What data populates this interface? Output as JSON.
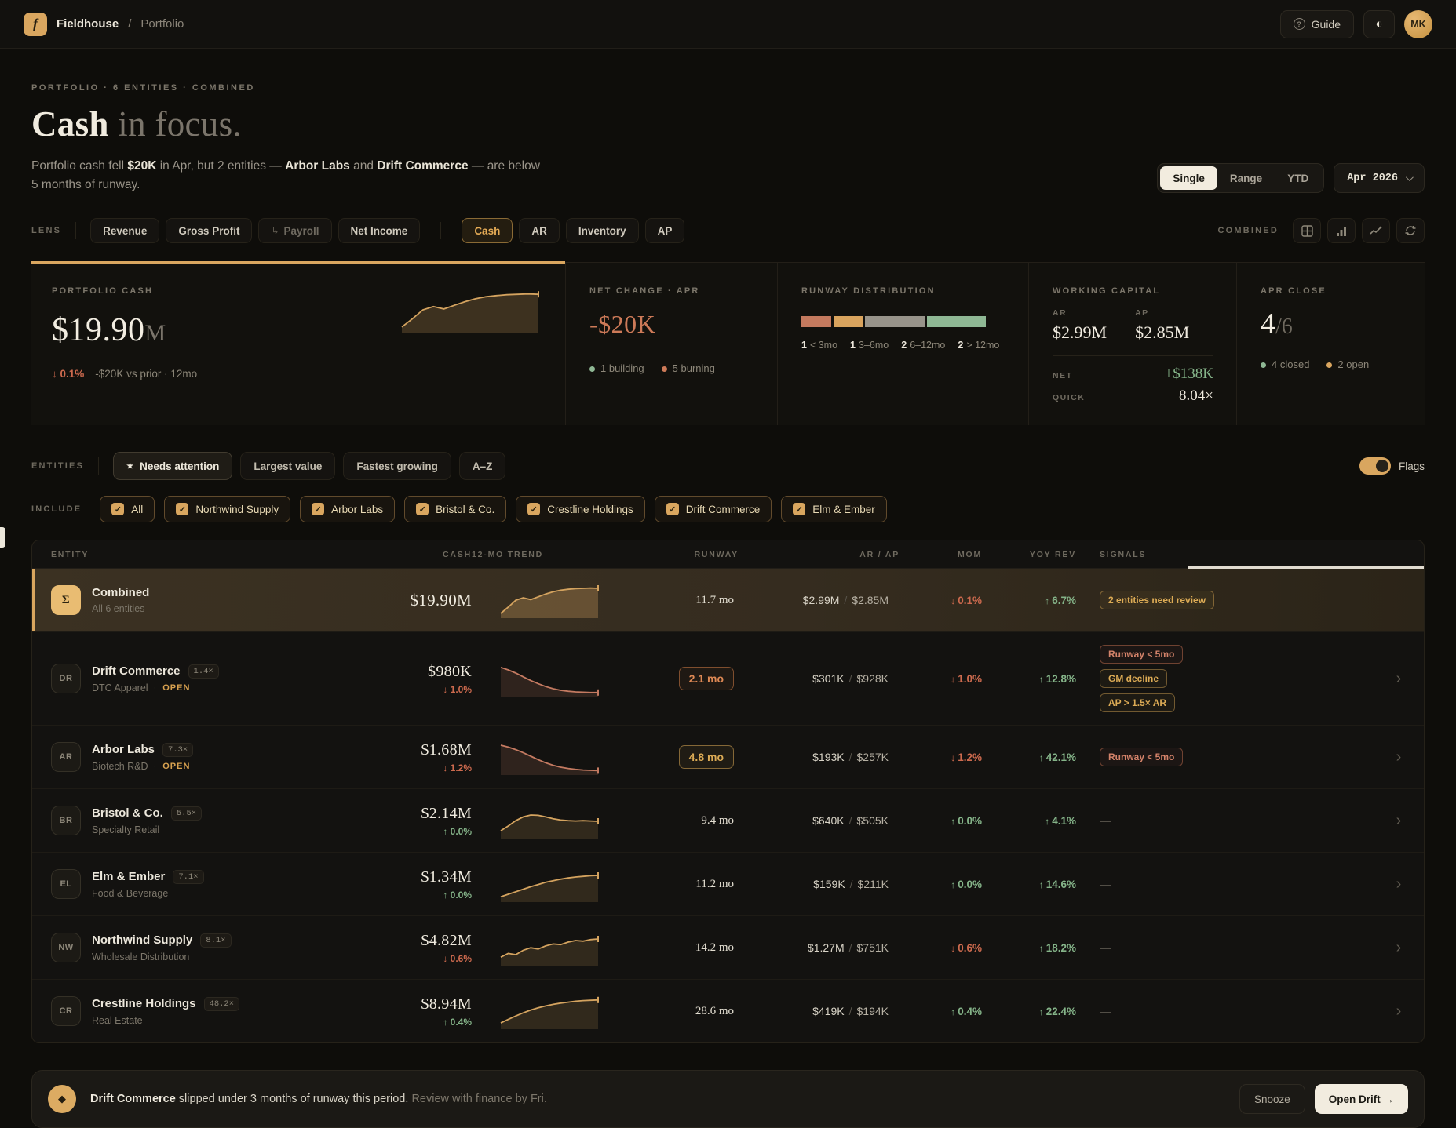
{
  "topbar": {
    "logo_glyph": "f",
    "brand": "Fieldhouse",
    "breadcrumb_sep": "/",
    "breadcrumb": "Portfolio",
    "guide_label": "Guide",
    "guide_icon": "?",
    "theme_icon": "◐",
    "avatar_initials": "MK"
  },
  "hero": {
    "eyebrow": "PORTFOLIO · 6 ENTITIES · COMBINED",
    "title_strong": "Cash",
    "title_rest": " in focus.",
    "desc_parts": [
      {
        "t": "Portfolio cash fell ",
        "b": false
      },
      {
        "t": "$20K",
        "b": true
      },
      {
        "t": " in Apr, but 2 entities — ",
        "b": false
      },
      {
        "t": "Arbor Labs",
        "b": true
      },
      {
        "t": " and ",
        "b": false
      },
      {
        "t": "Drift Commerce",
        "b": true
      },
      {
        "t": " — are below 5 months of runway.",
        "b": false
      }
    ]
  },
  "period": {
    "modes": [
      "Single",
      "Range",
      "YTD"
    ],
    "active_mode": "Single",
    "picker_label": "Apr 2026"
  },
  "lens": {
    "label": "LENS",
    "tabs": [
      {
        "label": "Revenue",
        "group": 1
      },
      {
        "label": "Gross Profit",
        "group": 1
      },
      {
        "label": "Payroll",
        "group": 1,
        "sub": true,
        "dim": true
      },
      {
        "label": "Net Income",
        "group": 1
      },
      {
        "label": "Cash",
        "group": 2,
        "active": true
      },
      {
        "label": "AR",
        "group": 2
      },
      {
        "label": "Inventory",
        "group": 2
      },
      {
        "label": "AP",
        "group": 2
      }
    ],
    "view_label": "COMBINED",
    "view_icons": [
      "table-grid-icon",
      "bar-chart-icon",
      "line-chart-icon",
      "refresh-icon"
    ]
  },
  "stats": {
    "portfolio_cash": {
      "label": "PORTFOLIO CASH",
      "value": "$19.90",
      "unit": "M",
      "delta_arrow": "↓",
      "delta": "0.1%",
      "note": "-$20K vs prior · 12mo"
    },
    "net_change": {
      "label": "NET CHANGE · APR",
      "value": "-$20K",
      "legend": [
        {
          "dot": "#8fb894",
          "text": "1 building"
        },
        {
          "dot": "#cd7a58",
          "text": "5 burning"
        }
      ]
    },
    "runway_distribution": {
      "label": "RUNWAY DISTRIBUTION",
      "segments": [
        {
          "color": "#c47a5e",
          "flex": 1
        },
        {
          "color": "#d9a45e",
          "flex": 1
        },
        {
          "color": "#98948a",
          "flex": 2
        },
        {
          "color": "#8fb894",
          "flex": 2
        }
      ],
      "legend": [
        {
          "n": "1",
          "t": "< 3mo"
        },
        {
          "n": "1",
          "t": "3–6mo"
        },
        {
          "n": "2",
          "t": "6–12mo"
        },
        {
          "n": "2",
          "t": "> 12mo"
        }
      ]
    },
    "working_capital": {
      "label": "WORKING CAPITAL",
      "ar_label": "AR",
      "ar_value": "$2.99M",
      "ap_label": "AP",
      "ap_value": "$2.85M",
      "net_label": "NET",
      "net_value": "+$138K",
      "quick_label": "QUICK",
      "quick_value": "8.04×"
    },
    "apr_close": {
      "label": "APR CLOSE",
      "value": "4",
      "of_total": "/6",
      "legend": [
        {
          "dot": "#8fb894",
          "text": "4 closed"
        },
        {
          "dot": "#d9a65f",
          "text": "2 open"
        }
      ]
    }
  },
  "entities_bar": {
    "label": "ENTITIES",
    "sorts": [
      {
        "label": "Needs attention",
        "star": "★",
        "active": true
      },
      {
        "label": "Largest value"
      },
      {
        "label": "Fastest growing"
      },
      {
        "label": "A–Z"
      }
    ],
    "flags_label": "Flags"
  },
  "include": {
    "label": "INCLUDE",
    "check_glyph": "✓",
    "chips": [
      "All",
      "Northwind Supply",
      "Arbor Labs",
      "Bristol & Co.",
      "Crestline Holdings",
      "Drift Commerce",
      "Elm & Ember"
    ]
  },
  "table": {
    "columns": [
      "ENTITY",
      "CASH",
      "12-MO TREND",
      "RUNWAY",
      "AR / AP",
      "MOM",
      "YOY REV",
      "SIGNALS"
    ],
    "no_signal": "—",
    "rows": [
      {
        "initials": "Σ",
        "avatar_style": "gold",
        "name": "Combined",
        "subtitle": "All 6 entities",
        "cash": "$19.90M",
        "spark": "combined",
        "spark_tone": "gold",
        "runway": "11.7 mo",
        "runway_style": "plain",
        "ar": "$2.99M",
        "ap": "$2.85M",
        "mom": "0.1%",
        "mom_dir": "down",
        "yoy": "6.7%",
        "yoy_dir": "up",
        "signals": [
          {
            "label": "2 entities need review",
            "tone": "gold"
          }
        ],
        "highlighted": true,
        "chevron": false
      },
      {
        "initials": "DR",
        "name": "Drift Commerce",
        "badge": "1.4×",
        "subtitle": "DTC Apparel",
        "open": "OPEN",
        "cash": "$980K",
        "delta": "1.0%",
        "delta_dir": "down",
        "spark": "drift",
        "spark_tone": "salmon",
        "runway": "2.1 mo",
        "runway_style": "alert",
        "ar": "$301K",
        "ap": "$928K",
        "mom": "1.0%",
        "mom_dir": "down",
        "yoy": "12.8%",
        "yoy_dir": "up",
        "signals": [
          {
            "label": "Runway < 5mo",
            "tone": "salmon"
          },
          {
            "label": "GM decline",
            "tone": "gold"
          },
          {
            "label": "AP > 1.5× AR",
            "tone": "gold"
          }
        ],
        "chevron": true
      },
      {
        "initials": "AR",
        "name": "Arbor Labs",
        "badge": "7.3×",
        "subtitle": "Biotech R&D",
        "open": "OPEN",
        "cash": "$1.68M",
        "delta": "1.2%",
        "delta_dir": "down",
        "spark": "arbor",
        "spark_tone": "salmon",
        "runway": "4.8 mo",
        "runway_style": "warn",
        "ar": "$193K",
        "ap": "$257K",
        "mom": "1.2%",
        "mom_dir": "down",
        "yoy": "42.1%",
        "yoy_dir": "up",
        "signals": [
          {
            "label": "Runway < 5mo",
            "tone": "salmon"
          }
        ],
        "chevron": true
      },
      {
        "initials": "BR",
        "name": "Bristol & Co.",
        "badge": "5.5×",
        "subtitle": "Specialty Retail",
        "cash": "$2.14M",
        "delta": "0.0%",
        "delta_dir": "up",
        "spark": "bristol",
        "spark_tone": "gold",
        "runway": "9.4 mo",
        "runway_style": "plain",
        "ar": "$640K",
        "ap": "$505K",
        "mom": "0.0%",
        "mom_dir": "up",
        "yoy": "4.1%",
        "yoy_dir": "up",
        "signals": [],
        "chevron": true
      },
      {
        "initials": "EL",
        "name": "Elm & Ember",
        "badge": "7.1×",
        "subtitle": "Food & Beverage",
        "cash": "$1.34M",
        "delta": "0.0%",
        "delta_dir": "up",
        "spark": "elm",
        "spark_tone": "gold",
        "runway": "11.2 mo",
        "runway_style": "plain",
        "ar": "$159K",
        "ap": "$211K",
        "mom": "0.0%",
        "mom_dir": "up",
        "yoy": "14.6%",
        "yoy_dir": "up",
        "signals": [],
        "chevron": true
      },
      {
        "initials": "NW",
        "name": "Northwind Supply",
        "badge": "8.1×",
        "subtitle": "Wholesale Distribution",
        "cash": "$4.82M",
        "delta": "0.6%",
        "delta_dir": "down",
        "spark": "northwind",
        "spark_tone": "gold",
        "runway": "14.2 mo",
        "runway_style": "plain",
        "ar": "$1.27M",
        "ap": "$751K",
        "mom": "0.6%",
        "mom_dir": "down",
        "yoy": "18.2%",
        "yoy_dir": "up",
        "signals": [],
        "chevron": true
      },
      {
        "initials": "CR",
        "name": "Crestline Holdings",
        "badge": "48.2×",
        "subtitle": "Real Estate",
        "cash": "$8.94M",
        "delta": "0.4%",
        "delta_dir": "up",
        "spark": "crestline",
        "spark_tone": "gold",
        "runway": "28.6 mo",
        "runway_style": "plain",
        "ar": "$419K",
        "ap": "$194K",
        "mom": "0.4%",
        "mom_dir": "up",
        "yoy": "22.4%",
        "yoy_dir": "up",
        "signals": [],
        "chevron": true
      }
    ]
  },
  "sparks": {
    "combined": [
      10,
      30,
      52,
      60,
      54,
      63,
      72,
      79,
      84,
      87,
      89,
      90,
      91,
      90
    ],
    "drift": [
      88,
      80,
      70,
      58,
      46,
      36,
      27,
      20,
      15,
      12,
      10,
      9,
      8,
      8
    ],
    "arbor": [
      90,
      84,
      76,
      66,
      55,
      44,
      34,
      26,
      20,
      16,
      13,
      11,
      10,
      9
    ],
    "bristol": [
      20,
      35,
      52,
      64,
      70,
      69,
      64,
      58,
      54,
      52,
      51,
      52,
      51,
      50
    ],
    "elm": [
      12,
      20,
      28,
      36,
      44,
      51,
      58,
      63,
      68,
      72,
      75,
      77,
      79,
      80
    ],
    "northwind": [
      22,
      34,
      30,
      44,
      52,
      48,
      58,
      64,
      62,
      70,
      75,
      73,
      78,
      80
    ],
    "crestline": [
      15,
      26,
      37,
      47,
      56,
      63,
      69,
      74,
      78,
      81,
      84,
      86,
      87,
      88
    ]
  },
  "colors": {
    "accent_gold": "#d9a65f",
    "cream": "#f2ecdf",
    "salmon": "#cd7a58",
    "red_down": "#cd6a4e",
    "green_up": "#85b489",
    "spark_gold": "#d4a35f",
    "spark_salmon": "#c47a61"
  },
  "banner": {
    "icon": "◆",
    "strong": "Drift Commerce",
    "text": " slipped under 3 months of runway this period. ",
    "muted": "Review with finance by Fri.",
    "snooze_label": "Snooze",
    "open_label": "Open Drift →"
  }
}
